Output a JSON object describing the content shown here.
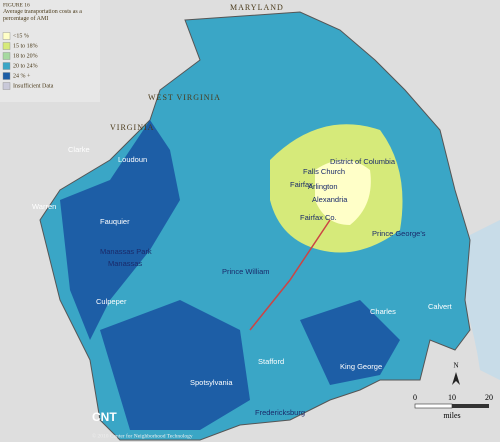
{
  "header": {
    "figure": "FIGURE 16",
    "title": "Average transportation costs as a percentage of AMI"
  },
  "legend": {
    "items": [
      {
        "label": "<15 %",
        "color": "#ffffc8"
      },
      {
        "label": "15 to 18%",
        "color": "#d6ea7a"
      },
      {
        "label": "18 to 20%",
        "color": "#a6d9a0"
      },
      {
        "label": "20 to 24%",
        "color": "#3aa6c6"
      },
      {
        "label": "24 % +",
        "color": "#1d5ea6"
      },
      {
        "label": "Insufficient Data",
        "color": "#c9c9d9"
      }
    ]
  },
  "states": [
    "MARYLAND",
    "WEST VIRGINIA",
    "VIRGINIA"
  ],
  "places": [
    "Clarke",
    "Loudoun",
    "Warren",
    "Fauquier",
    "Manassas Park",
    "Manassas",
    "Culpeper",
    "Prince William",
    "Fairfax",
    "Falls Church",
    "Arlington",
    "District of Columbia",
    "Alexandria",
    "Fairfax Co.",
    "Prince George's",
    "Charles",
    "Calvert",
    "Stafford",
    "King George",
    "Spotsylvania",
    "Fredericksburg"
  ],
  "scale": {
    "ticks": [
      "0",
      "10",
      "20"
    ],
    "unit": "miles",
    "north": "N"
  },
  "footer": {
    "logo": "CNT",
    "credit": "© 2010 Center for Neighborhood Technology"
  }
}
